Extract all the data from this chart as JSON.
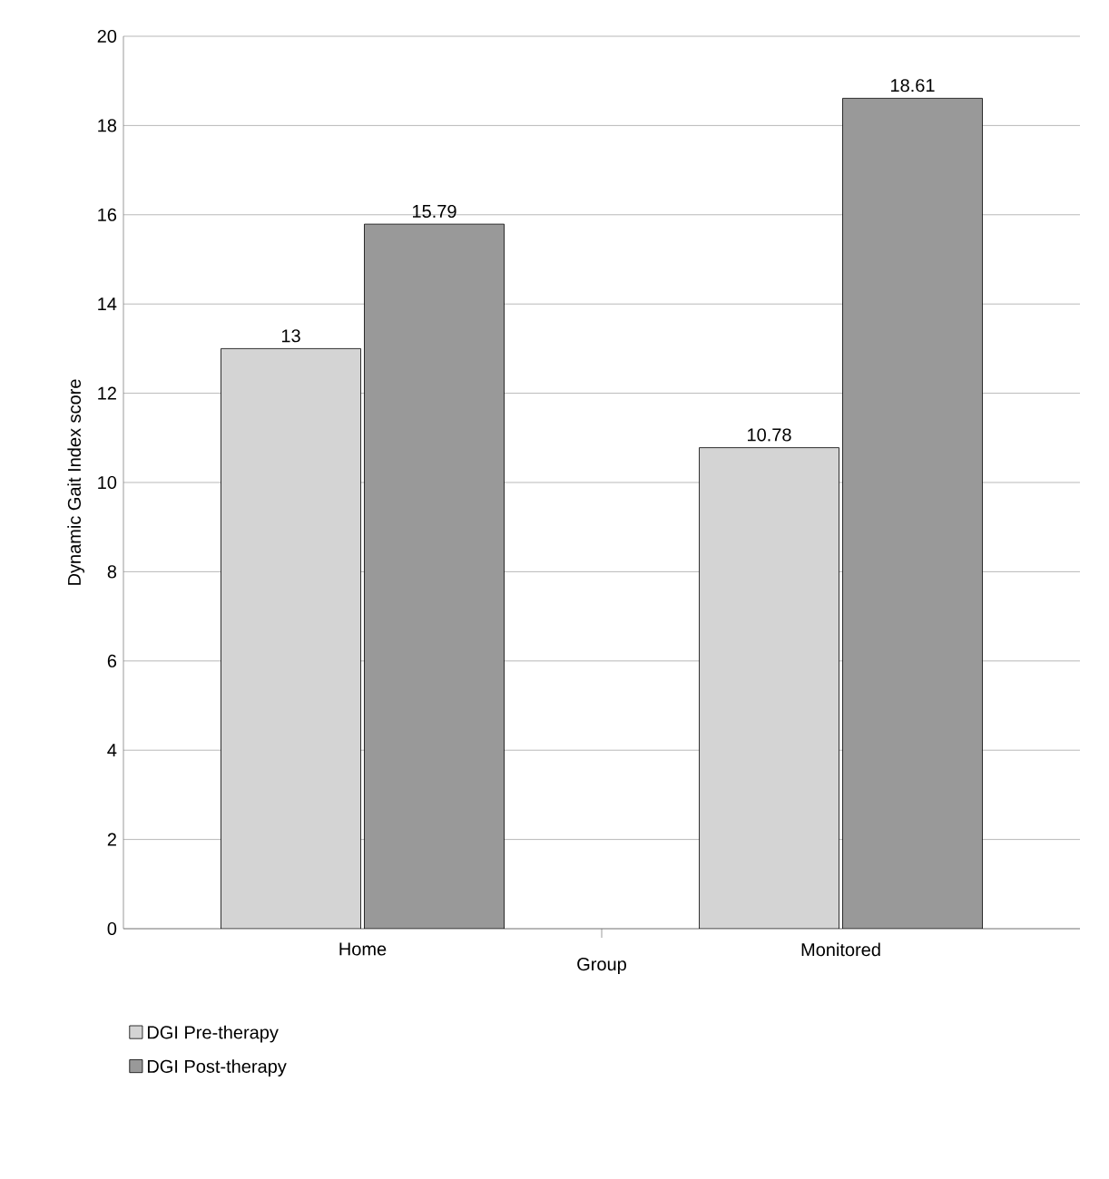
{
  "chart_data": {
    "type": "bar",
    "xlabel": "Group",
    "ylabel": "Dynamic Gait Index score",
    "categories": [
      "Home",
      "Monitored"
    ],
    "series": [
      {
        "name": "DGI Pre-therapy",
        "color": "#d4d4d4",
        "values": [
          13,
          10.78
        ]
      },
      {
        "name": "DGI Post-therapy",
        "color": "#999999",
        "values": [
          15.79,
          18.61
        ]
      }
    ],
    "ylim": [
      0,
      20
    ],
    "yticks": [
      0,
      2,
      4,
      6,
      8,
      10,
      12,
      14,
      16,
      18,
      20
    ],
    "grid": "y",
    "legend": "bottom",
    "data_labels": true
  }
}
